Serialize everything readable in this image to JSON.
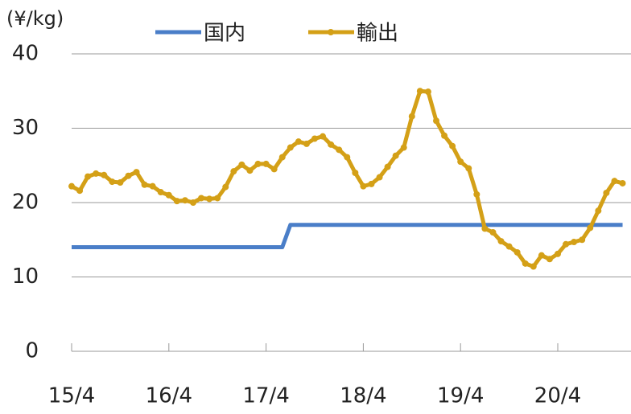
{
  "chart_data": {
    "type": "line",
    "y_label": "(¥/kg)",
    "categories": [
      "15/4",
      null,
      null,
      null,
      null,
      null,
      null,
      null,
      null,
      null,
      null,
      null,
      "16/4",
      null,
      null,
      null,
      null,
      null,
      null,
      null,
      null,
      null,
      null,
      null,
      "17/4",
      null,
      null,
      null,
      null,
      null,
      null,
      null,
      null,
      null,
      null,
      null,
      "18/4",
      null,
      null,
      null,
      null,
      null,
      null,
      null,
      null,
      null,
      null,
      null,
      "19/4",
      null,
      null,
      null,
      null,
      null,
      null,
      null,
      null,
      null,
      null,
      null,
      "20/4",
      null,
      null,
      null,
      null,
      null,
      null,
      null,
      null
    ],
    "series": [
      {
        "name": "国内",
        "color": "#4a7ec8",
        "markers": false,
        "values": [
          14,
          14,
          14,
          14,
          14,
          14,
          14,
          14,
          14,
          14,
          14,
          14,
          14,
          14,
          14,
          14,
          14,
          14,
          14,
          14,
          14,
          14,
          14,
          14,
          14,
          14,
          14,
          17,
          17,
          17,
          17,
          17,
          17,
          17,
          17,
          17,
          17,
          17,
          17,
          17,
          17,
          17,
          17,
          17,
          17,
          17,
          17,
          17,
          17,
          17,
          17,
          17,
          17,
          17,
          17,
          17,
          17,
          17,
          17,
          17,
          17,
          17,
          17,
          17,
          17,
          17,
          17,
          17,
          17
        ]
      },
      {
        "name": "輸出",
        "color": "#d4a017",
        "markers": true,
        "values": [
          22.2,
          21.6,
          23.5,
          23.9,
          23.7,
          22.8,
          22.7,
          23.6,
          24.1,
          22.4,
          22.2,
          21.4,
          21.0,
          20.2,
          20.3,
          20.0,
          20.6,
          20.5,
          20.6,
          22.1,
          24.2,
          25.1,
          24.3,
          25.2,
          25.2,
          24.5,
          26.1,
          27.4,
          28.2,
          27.9,
          28.6,
          28.9,
          27.8,
          27.1,
          26.1,
          24.0,
          22.2,
          22.5,
          23.4,
          24.8,
          26.3,
          27.4,
          31.6,
          35.0,
          34.9,
          31.0,
          29.0,
          27.6,
          25.5,
          24.6,
          21.1,
          16.5,
          16.0,
          14.8,
          14.1,
          13.3,
          11.8,
          11.4,
          12.9,
          12.4,
          13.1,
          14.4,
          14.7,
          15.0,
          16.6,
          18.9,
          21.3,
          22.9,
          22.6
        ]
      }
    ],
    "ylim": [
      0,
      40
    ],
    "yticks": [
      0,
      10,
      20,
      30,
      40
    ],
    "grid": true
  }
}
